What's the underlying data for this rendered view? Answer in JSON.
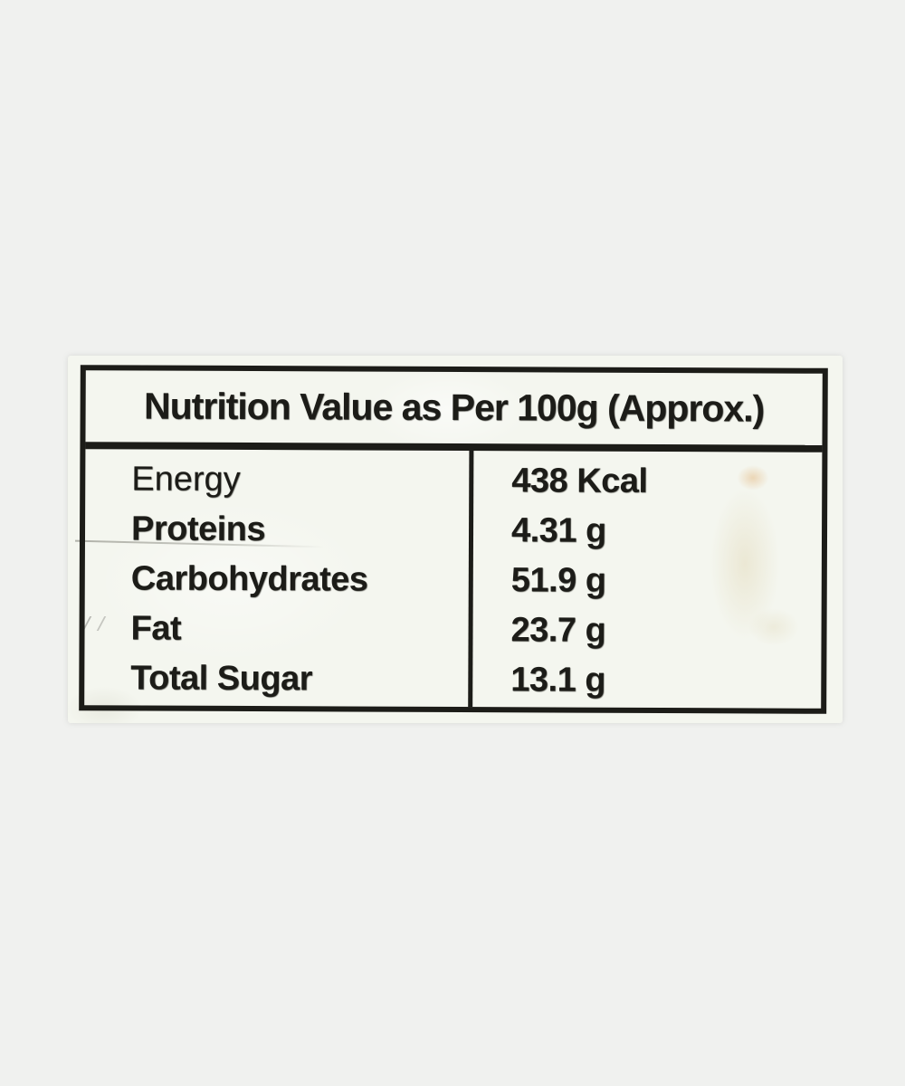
{
  "label": {
    "title": "Nutrition Value as Per 100g  (Approx.)",
    "rows": [
      {
        "name": "Energy",
        "value": "438 Kcal"
      },
      {
        "name": "Proteins",
        "value": "4.31 g"
      },
      {
        "name": "Carbohydrates",
        "value": "51.9 g"
      },
      {
        "name": "Fat",
        "value": "23.7 g"
      },
      {
        "name": "Total Sugar",
        "value": "13.1 g"
      }
    ],
    "colors": {
      "background": "#f0f1ef",
      "paper": "#f4f6ef",
      "ink": "#1c1c18"
    }
  }
}
